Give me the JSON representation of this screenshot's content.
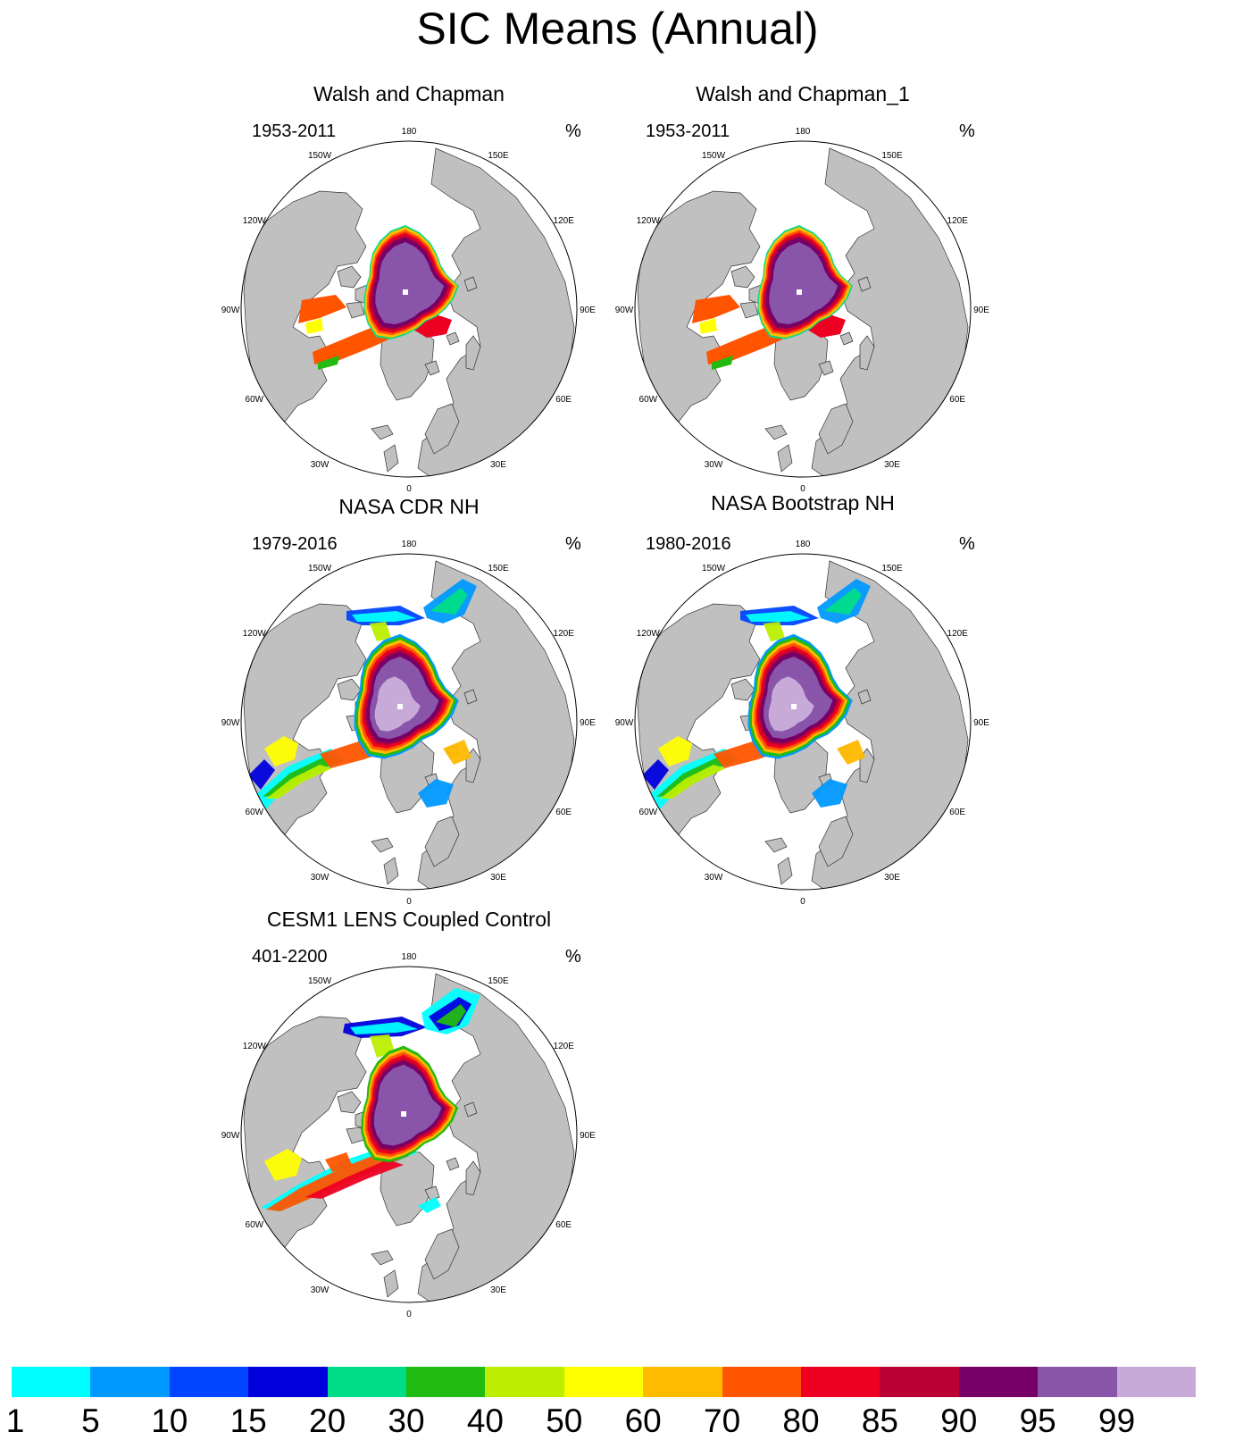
{
  "title": "SIC Means (Annual)",
  "colors": {
    "land": "#c0c0c0",
    "ocean": "#ffffff",
    "coast": "#333333"
  },
  "longitude_labels": [
    "180",
    "150E",
    "120E",
    "90E",
    "60E",
    "30E",
    "0",
    "30W",
    "60W",
    "90W",
    "120W",
    "150W"
  ],
  "panels": [
    {
      "id": "walsh",
      "title": "Walsh and Chapman",
      "period": "1953-2011",
      "unit": "%",
      "pattern": "walsh"
    },
    {
      "id": "walsh1",
      "title": "Walsh and Chapman_1",
      "period": "1953-2011",
      "unit": "%",
      "pattern": "walsh"
    },
    {
      "id": "cdr",
      "title": "NASA CDR NH",
      "period": "1979-2016",
      "unit": "%",
      "pattern": "nasa"
    },
    {
      "id": "bootstrap",
      "title": "NASA Bootstrap NH",
      "period": "1980-2016",
      "unit": "%",
      "pattern": "nasa"
    },
    {
      "id": "cesm",
      "title": "CESM1 LENS Coupled Control",
      "period": "401-2200",
      "unit": "%",
      "pattern": "cesm"
    }
  ],
  "colorbar": {
    "labels": [
      "1",
      "5",
      "10",
      "15",
      "20",
      "30",
      "40",
      "50",
      "60",
      "70",
      "80",
      "85",
      "90",
      "95",
      "99"
    ],
    "colors": [
      "#00ffff",
      "#0099ff",
      "#0044ff",
      "#0000dd",
      "#00dd88",
      "#22bb11",
      "#bbee00",
      "#ffff00",
      "#ffbb00",
      "#ff5500",
      "#ee0022",
      "#bb0033",
      "#770066",
      "#8855aa",
      "#c8aad8"
    ]
  }
}
